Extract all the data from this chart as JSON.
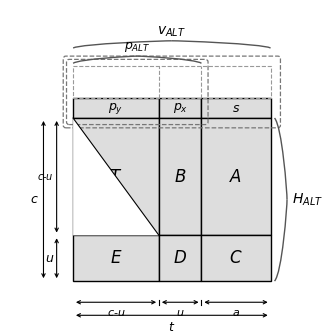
{
  "bg_color": "#ffffff",
  "fill_color": "#dddddd",
  "border_color": "#000000",
  "fig_w": 3.32,
  "fig_h": 3.36,
  "ML": 0.22,
  "MB": 0.14,
  "MW": 0.6,
  "MH": 0.5,
  "c1": 0.435,
  "c2": 0.215,
  "c3": 0.35,
  "r1": 0.72,
  "r2": 0.28,
  "HH": 0.06
}
